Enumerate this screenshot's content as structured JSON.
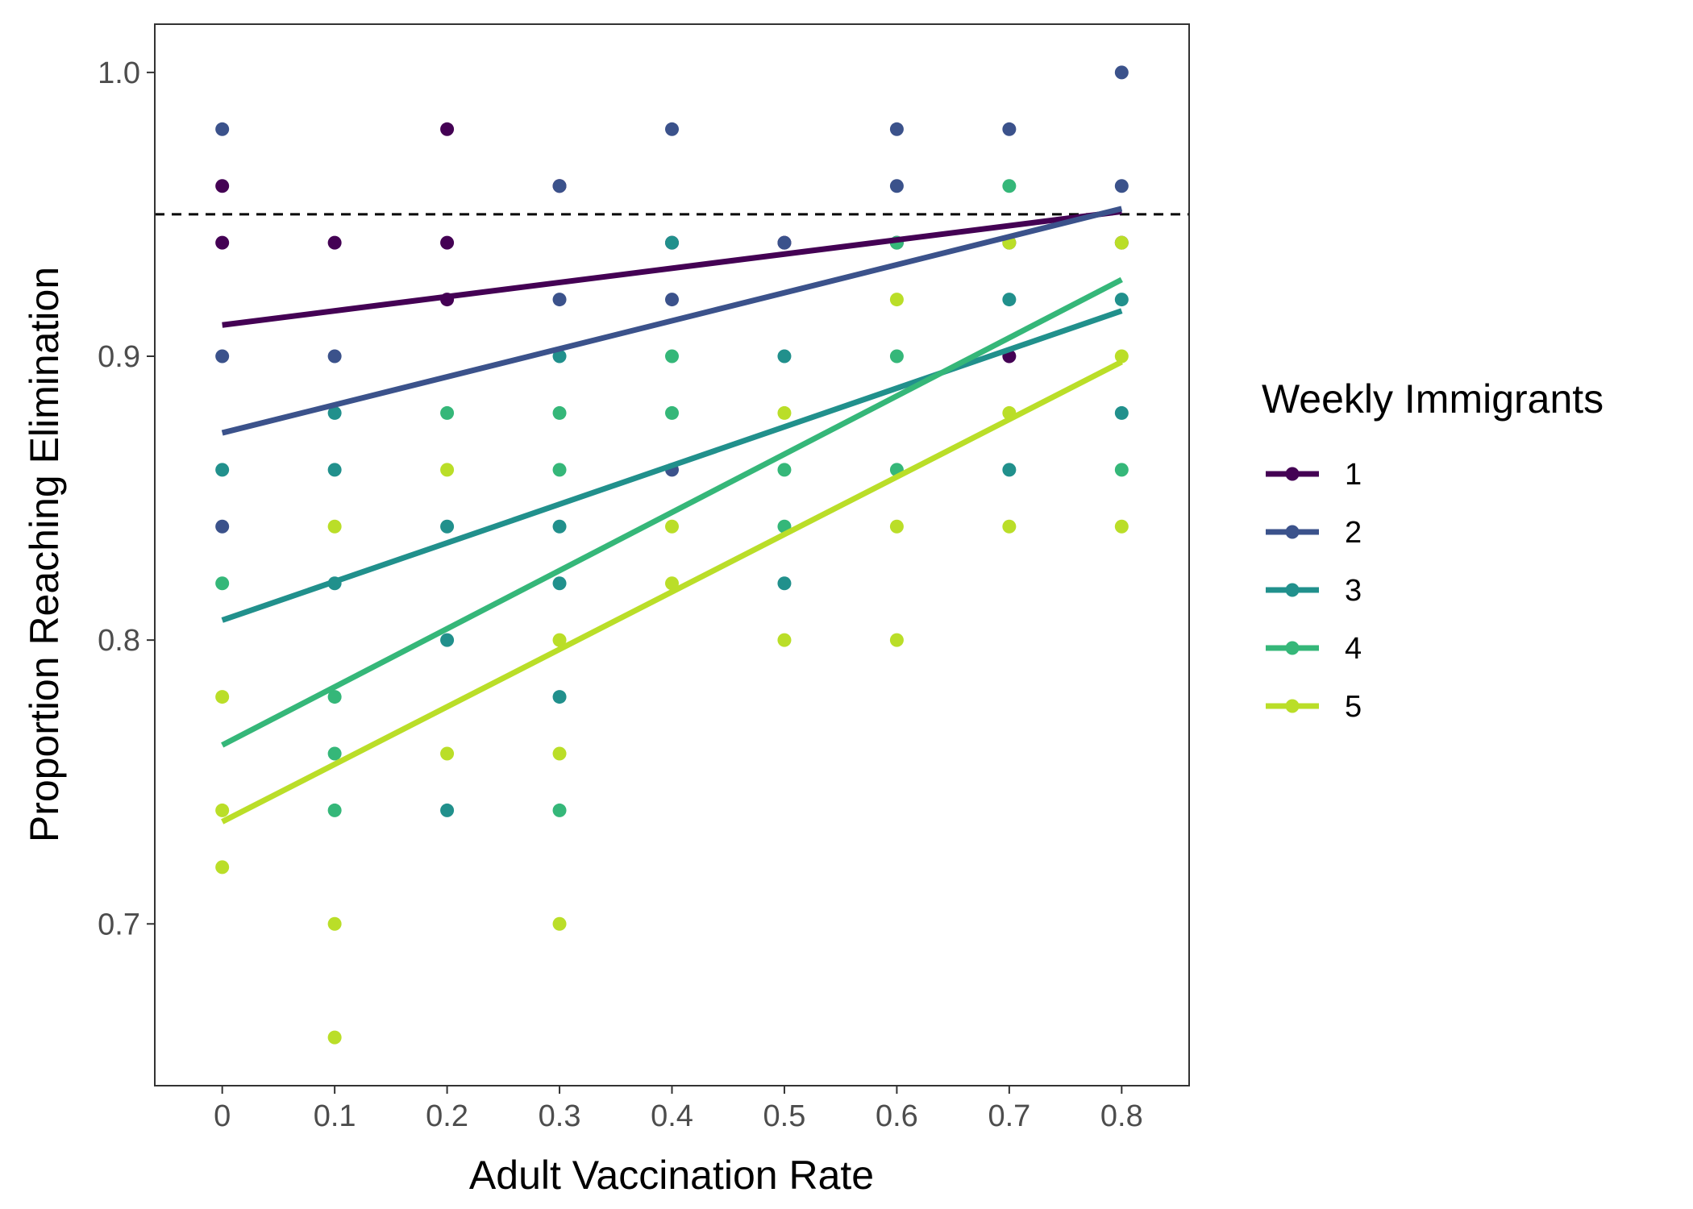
{
  "chart_data": {
    "type": "scatter",
    "title": "",
    "xlabel": "Adult Vaccination Rate",
    "ylabel": "Proportion Reaching Elimination",
    "xlim": [
      -0.06,
      0.86
    ],
    "ylim": [
      0.643,
      1.017
    ],
    "x_ticks": [
      0,
      0.1,
      0.2,
      0.3,
      0.4,
      0.5,
      0.6,
      0.7,
      0.8
    ],
    "x_tick_labels": [
      "0",
      "0.1",
      "0.2",
      "0.3",
      "0.4",
      "0.5",
      "0.6",
      "0.7",
      "0.8"
    ],
    "y_ticks": [
      0.7,
      0.8,
      0.9,
      1.0
    ],
    "y_tick_labels": [
      "0.7",
      "0.8",
      "0.9",
      "1.0"
    ],
    "grid": false,
    "reference_line": {
      "y": 0.95,
      "style": "dashed",
      "color": "#000000"
    },
    "legend": {
      "title": "Weekly Immigrants",
      "position": "right"
    },
    "series": [
      {
        "name": "1",
        "color": "#440154",
        "points": [
          [
            0,
            0.96
          ],
          [
            0,
            0.94
          ],
          [
            0.1,
            0.94
          ],
          [
            0.2,
            0.98
          ],
          [
            0.2,
            0.94
          ],
          [
            0.2,
            0.92
          ],
          [
            0.3,
            0.96
          ],
          [
            0.4,
            0.94
          ],
          [
            0.5,
            0.94
          ],
          [
            0.6,
            0.94
          ],
          [
            0.7,
            0.94
          ],
          [
            0.7,
            0.9
          ],
          [
            0.8,
            0.94
          ]
        ],
        "trend": [
          [
            0,
            0.911
          ],
          [
            0.8,
            0.951
          ]
        ]
      },
      {
        "name": "2",
        "color": "#3B528B",
        "points": [
          [
            0,
            0.98
          ],
          [
            0,
            0.9
          ],
          [
            0,
            0.84
          ],
          [
            0.1,
            0.9
          ],
          [
            0.3,
            0.96
          ],
          [
            0.3,
            0.92
          ],
          [
            0.4,
            0.98
          ],
          [
            0.4,
            0.92
          ],
          [
            0.4,
            0.86
          ],
          [
            0.5,
            0.94
          ],
          [
            0.6,
            0.98
          ],
          [
            0.6,
            0.96
          ],
          [
            0.7,
            0.98
          ],
          [
            0.8,
            1.0
          ],
          [
            0.8,
            0.96
          ]
        ],
        "trend": [
          [
            0,
            0.873
          ],
          [
            0.8,
            0.952
          ]
        ]
      },
      {
        "name": "3",
        "color": "#21908C",
        "points": [
          [
            0,
            0.86
          ],
          [
            0.1,
            0.88
          ],
          [
            0.1,
            0.86
          ],
          [
            0.1,
            0.82
          ],
          [
            0.2,
            0.84
          ],
          [
            0.2,
            0.8
          ],
          [
            0.2,
            0.74
          ],
          [
            0.3,
            0.9
          ],
          [
            0.3,
            0.84
          ],
          [
            0.3,
            0.82
          ],
          [
            0.3,
            0.78
          ],
          [
            0.4,
            0.94
          ],
          [
            0.5,
            0.9
          ],
          [
            0.5,
            0.82
          ],
          [
            0.7,
            0.92
          ],
          [
            0.7,
            0.86
          ],
          [
            0.8,
            0.92
          ],
          [
            0.8,
            0.88
          ]
        ],
        "trend": [
          [
            0,
            0.807
          ],
          [
            0.8,
            0.916
          ]
        ]
      },
      {
        "name": "4",
        "color": "#35B779",
        "points": [
          [
            0,
            0.82
          ],
          [
            0.1,
            0.78
          ],
          [
            0.1,
            0.76
          ],
          [
            0.1,
            0.74
          ],
          [
            0.2,
            0.88
          ],
          [
            0.3,
            0.88
          ],
          [
            0.3,
            0.86
          ],
          [
            0.3,
            0.74
          ],
          [
            0.4,
            0.9
          ],
          [
            0.4,
            0.88
          ],
          [
            0.5,
            0.86
          ],
          [
            0.5,
            0.84
          ],
          [
            0.6,
            0.94
          ],
          [
            0.6,
            0.9
          ],
          [
            0.6,
            0.86
          ],
          [
            0.7,
            0.96
          ],
          [
            0.8,
            0.86
          ]
        ],
        "trend": [
          [
            0,
            0.763
          ],
          [
            0.8,
            0.927
          ]
        ]
      },
      {
        "name": "5",
        "color": "#BADE28",
        "points": [
          [
            0,
            0.78
          ],
          [
            0,
            0.74
          ],
          [
            0,
            0.72
          ],
          [
            0.1,
            0.84
          ],
          [
            0.1,
            0.7
          ],
          [
            0.1,
            0.66
          ],
          [
            0.2,
            0.86
          ],
          [
            0.2,
            0.76
          ],
          [
            0.3,
            0.8
          ],
          [
            0.3,
            0.76
          ],
          [
            0.3,
            0.7
          ],
          [
            0.4,
            0.84
          ],
          [
            0.4,
            0.82
          ],
          [
            0.5,
            0.88
          ],
          [
            0.5,
            0.8
          ],
          [
            0.6,
            0.92
          ],
          [
            0.6,
            0.84
          ],
          [
            0.6,
            0.8
          ],
          [
            0.7,
            0.94
          ],
          [
            0.7,
            0.88
          ],
          [
            0.7,
            0.84
          ],
          [
            0.8,
            0.94
          ],
          [
            0.8,
            0.9
          ],
          [
            0.8,
            0.84
          ]
        ],
        "trend": [
          [
            0,
            0.736
          ],
          [
            0.8,
            0.898
          ]
        ]
      }
    ]
  }
}
